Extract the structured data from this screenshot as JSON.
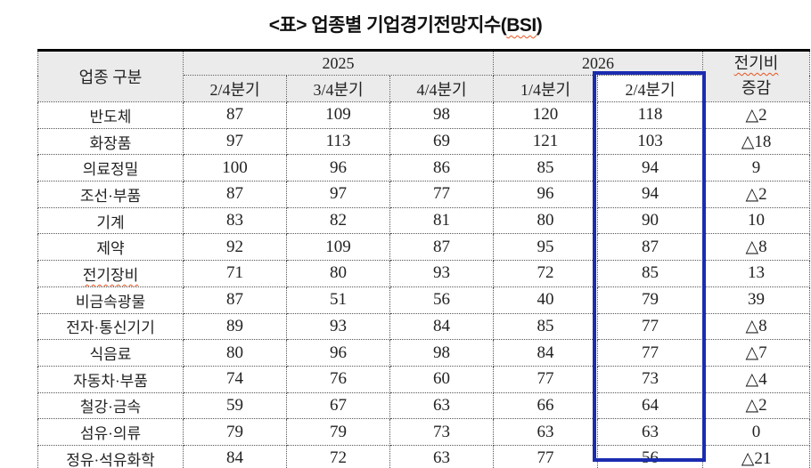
{
  "title": {
    "prefix": "<표> 업종별 기업경기전망지수(",
    "bsi": "BSI",
    "suffix": ")"
  },
  "colors": {
    "highlight_box": "#1b2cb0",
    "header_bg": "#ebebeb",
    "wavy_underline": "#e8541e",
    "table_rule": "#000000"
  },
  "table": {
    "header": {
      "group": "업종 구분",
      "years": [
        {
          "label": "2025",
          "span": 3
        },
        {
          "label": "2026",
          "span": 2
        }
      ],
      "quarters": [
        "2/4분기",
        "3/4분기",
        "4/4분기",
        "1/4분기",
        "2/4분기"
      ],
      "change": {
        "line1": "전기비",
        "line2": "증감",
        "line1_wavy": true
      }
    },
    "highlight_index": 4,
    "highlight_column": "2026 2/4분기",
    "rows": [
      {
        "label": "반도체",
        "values": [
          "87",
          "109",
          "98",
          "120",
          "118",
          "△2"
        ]
      },
      {
        "label": "화장품",
        "values": [
          "97",
          "113",
          "69",
          "121",
          "103",
          "△18"
        ]
      },
      {
        "label": "의료정밀",
        "values": [
          "100",
          "96",
          "86",
          "85",
          "94",
          "9"
        ]
      },
      {
        "label": "조선·부품",
        "values": [
          "87",
          "97",
          "77",
          "96",
          "94",
          "△2"
        ]
      },
      {
        "label": "기계",
        "values": [
          "83",
          "82",
          "81",
          "80",
          "90",
          "10"
        ]
      },
      {
        "label": "제약",
        "values": [
          "92",
          "109",
          "87",
          "95",
          "87",
          "△8"
        ]
      },
      {
        "label": "전기장비",
        "wavy": true,
        "values": [
          "71",
          "80",
          "93",
          "72",
          "85",
          "13"
        ]
      },
      {
        "label": "비금속광물",
        "values": [
          "87",
          "51",
          "56",
          "40",
          "79",
          "39"
        ]
      },
      {
        "label": "전자·통신기기",
        "values": [
          "89",
          "93",
          "84",
          "85",
          "77",
          "△8"
        ]
      },
      {
        "label": "식음료",
        "values": [
          "80",
          "96",
          "98",
          "84",
          "77",
          "△7"
        ]
      },
      {
        "label": "자동차·부품",
        "values": [
          "74",
          "76",
          "60",
          "77",
          "73",
          "△4"
        ]
      },
      {
        "label": "철강·금속",
        "values": [
          "59",
          "67",
          "63",
          "66",
          "64",
          "△2"
        ]
      },
      {
        "label": "섬유·의류",
        "values": [
          "79",
          "79",
          "73",
          "63",
          "63",
          "0"
        ]
      },
      {
        "label": "정유·석유화학",
        "values": [
          "84",
          "72",
          "63",
          "77",
          "56",
          "△21"
        ]
      }
    ]
  }
}
